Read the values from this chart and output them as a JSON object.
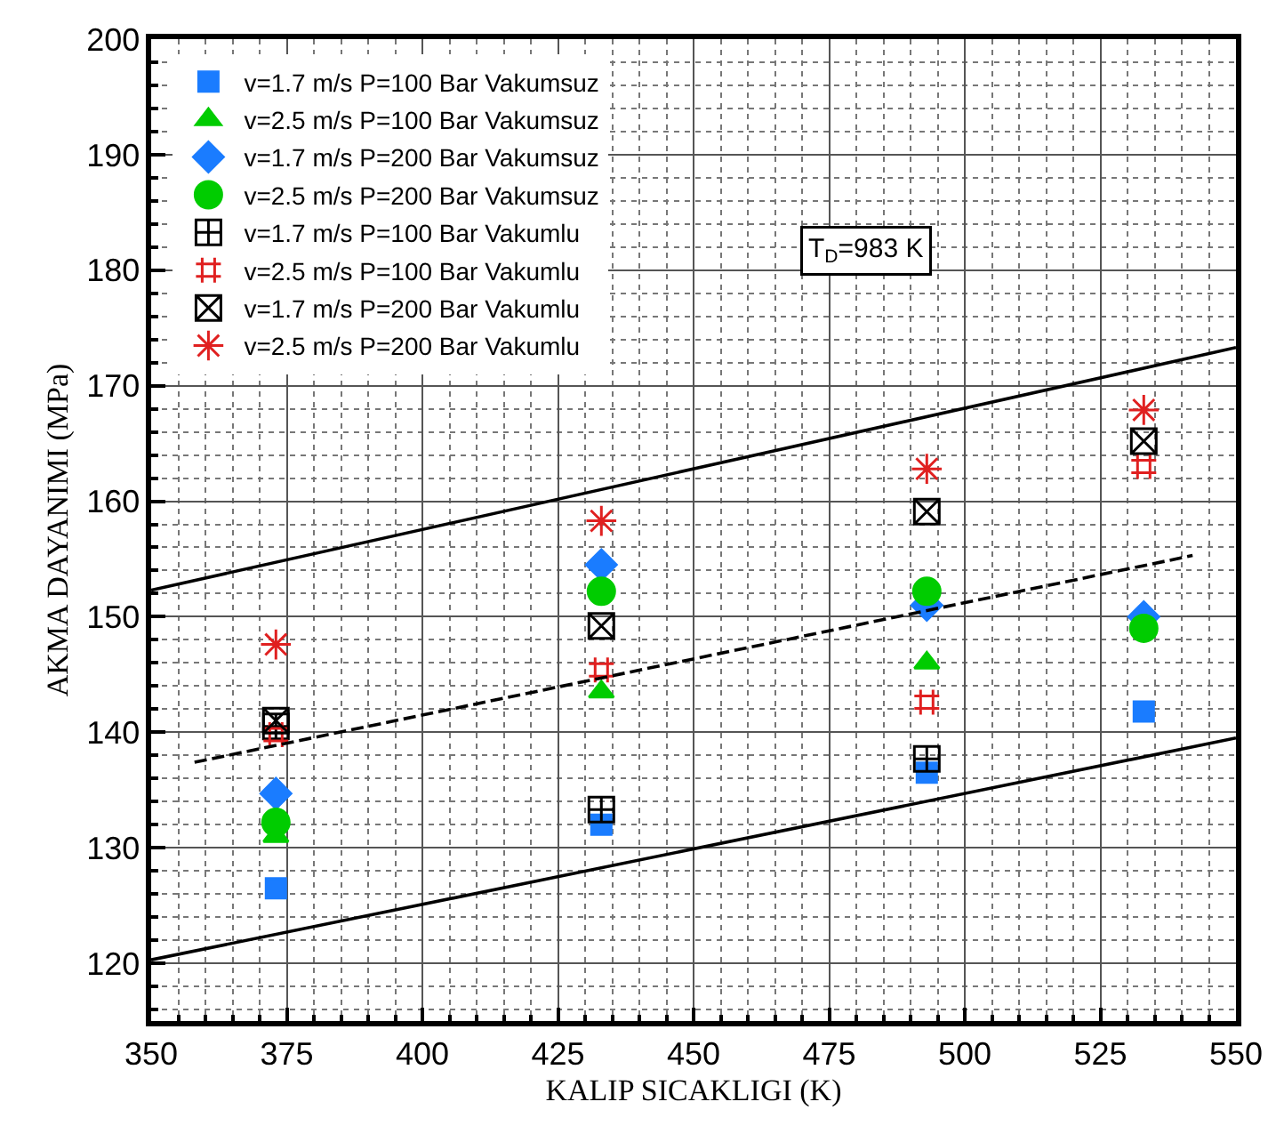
{
  "chart_data": {
    "type": "scatter",
    "xlabel": "KALIP SICAKLIGI (K)",
    "ylabel": "AKMA DAYANIMI (MPa)",
    "x": [
      373,
      433,
      493,
      533
    ],
    "series": [
      {
        "name": "v=1.7 m/s P=100 Bar Vakumsuz",
        "color": "#1a7cff",
        "marker": "square",
        "values": [
          126.5,
          132,
          136.5,
          141.8
        ]
      },
      {
        "name": "v=2.5 m/s P=100 Bar Vakumsuz",
        "color": "#00cc00",
        "marker": "triangle",
        "values": [
          131,
          143.5,
          146,
          null
        ]
      },
      {
        "name": "v=1.7 m/s P=200 Bar Vakumsuz",
        "color": "#1a7cff",
        "marker": "diamond",
        "values": [
          134.7,
          154.5,
          151,
          150
        ]
      },
      {
        "name": "v=2.5 m/s P=200 Bar Vakumsuz",
        "color": "#00cc00",
        "marker": "circle",
        "values": [
          132.2,
          152.2,
          152.2,
          149
        ]
      },
      {
        "name": "v=1.7 m/s P=100 Bar Vakumlu",
        "color": "#000000",
        "marker": "cross",
        "values": [
          140.5,
          133.3,
          137.7,
          null
        ]
      },
      {
        "name": "v=2.5 m/s P=100 Bar Vakumlu",
        "color": "#e02020",
        "marker": "cross",
        "values": [
          139.8,
          145.4,
          142.6,
          163
        ]
      },
      {
        "name": "v=1.7 m/s P=200 Bar Vakumlu",
        "color": "#000000",
        "marker": "cross",
        "values": [
          141,
          149.2,
          159.1,
          165.2
        ]
      },
      {
        "name": "v=2.5 m/s P=200 Bar Vakumlu",
        "color": "#e02020",
        "marker": "cross",
        "values": [
          147.6,
          158.3,
          162.8,
          167.9
        ]
      },
      {
        "type": "line",
        "color": "#000000",
        "line_style": "solid",
        "x": [
          350,
          550
        ],
        "values": [
          152.3,
          173.3
        ]
      },
      {
        "type": "line",
        "color": "#000000",
        "line_style": "dashed",
        "x": [
          358,
          542
        ],
        "values": [
          137.4,
          155.3
        ]
      },
      {
        "type": "line",
        "color": "#000000",
        "line_style": "solid",
        "x": [
          350,
          550
        ],
        "values": [
          120.3,
          139.5
        ]
      }
    ],
    "annotations": [
      "T$_{D}$=983 K"
    ],
    "xlim": [
      350,
      550
    ],
    "xticks": [
      350,
      375,
      400,
      425,
      450,
      475,
      500,
      525,
      550
    ],
    "ylim": [
      115,
      200
    ],
    "yticks": [
      120,
      130,
      140,
      150,
      160,
      170,
      180,
      190,
      200
    ],
    "grid": true,
    "legend": "top left"
  }
}
